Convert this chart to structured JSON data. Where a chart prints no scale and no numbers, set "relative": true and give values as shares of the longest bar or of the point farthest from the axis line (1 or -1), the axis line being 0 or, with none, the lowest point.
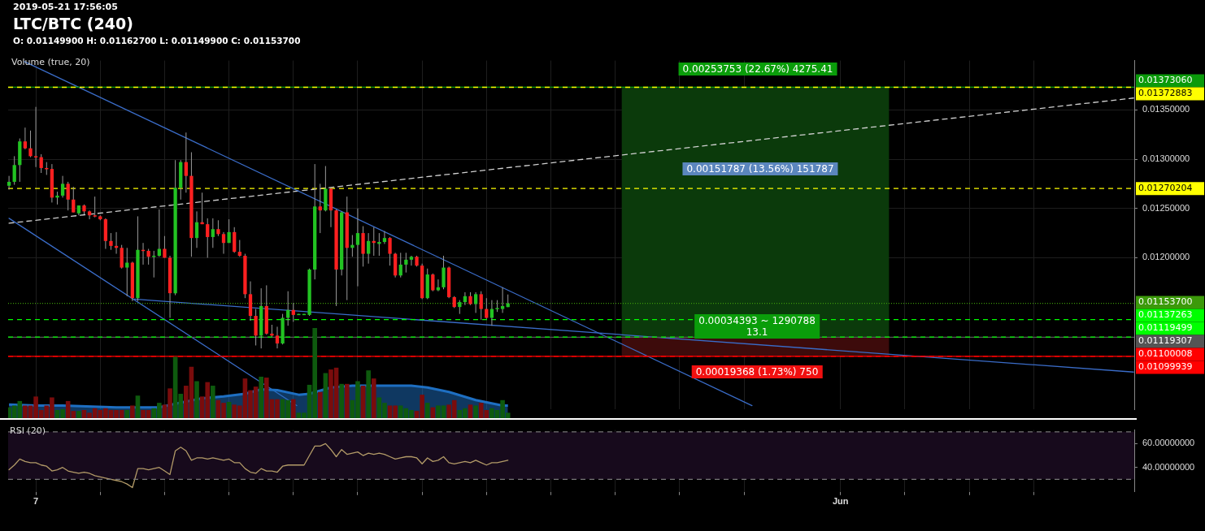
{
  "chart_data": [
    {
      "type": "candlestick",
      "title": "LTC/BTC (240)",
      "subtitle": "O: 0.01149900 H: 0.01162700 L: 0.01149900 C: 0.01153700",
      "annotations": [
        "2019-05-21 17:56:05",
        "0.00253753 (22.67%) 4275.41",
        "0.00151787 (13.56%) 151787",
        "0.00034393 ~ 1290788\n13.1",
        "0.00019368 (1.73%) 750"
      ],
      "x": [
        "2019-05-06T04:00",
        "2019-05-06T08:00",
        "2019-05-06T12:00",
        "2019-05-06T16:00",
        "2019-05-06T20:00",
        "2019-05-07T00:00",
        "2019-05-07T04:00",
        "2019-05-07T08:00",
        "2019-05-07T12:00",
        "2019-05-07T16:00",
        "2019-05-07T20:00",
        "2019-05-08T00:00",
        "2019-05-08T04:00",
        "2019-05-08T08:00",
        "2019-05-08T12:00",
        "2019-05-08T16:00",
        "2019-05-08T20:00",
        "2019-05-09T00:00",
        "2019-05-09T04:00",
        "2019-05-09T08:00",
        "2019-05-09T12:00",
        "2019-05-09T16:00",
        "2019-05-09T20:00",
        "2019-05-10T00:00",
        "2019-05-10T04:00",
        "2019-05-10T08:00",
        "2019-05-10T12:00",
        "2019-05-10T16:00",
        "2019-05-10T20:00",
        "2019-05-11T00:00",
        "2019-05-11T04:00",
        "2019-05-11T08:00",
        "2019-05-11T12:00",
        "2019-05-11T16:00",
        "2019-05-11T20:00",
        "2019-05-12T00:00",
        "2019-05-12T04:00",
        "2019-05-12T08:00",
        "2019-05-12T12:00",
        "2019-05-12T16:00",
        "2019-05-12T20:00",
        "2019-05-13T00:00",
        "2019-05-13T04:00",
        "2019-05-13T08:00",
        "2019-05-13T12:00",
        "2019-05-13T16:00",
        "2019-05-13T20:00",
        "2019-05-14T00:00",
        "2019-05-14T04:00",
        "2019-05-14T08:00",
        "2019-05-14T12:00",
        "2019-05-14T16:00",
        "2019-05-14T20:00",
        "2019-05-15T00:00",
        "2019-05-15T04:00",
        "2019-05-15T08:00",
        "2019-05-15T12:00",
        "2019-05-15T16:00",
        "2019-05-15T20:00",
        "2019-05-16T00:00",
        "2019-05-16T04:00",
        "2019-05-16T08:00",
        "2019-05-16T12:00",
        "2019-05-16T16:00",
        "2019-05-16T20:00",
        "2019-05-17T00:00",
        "2019-05-17T04:00",
        "2019-05-17T08:00",
        "2019-05-17T12:00",
        "2019-05-17T16:00",
        "2019-05-17T20:00",
        "2019-05-18T00:00",
        "2019-05-18T04:00",
        "2019-05-18T08:00",
        "2019-05-18T12:00",
        "2019-05-18T16:00",
        "2019-05-18T20:00",
        "2019-05-19T00:00",
        "2019-05-19T04:00",
        "2019-05-19T08:00",
        "2019-05-19T12:00",
        "2019-05-19T16:00",
        "2019-05-19T20:00",
        "2019-05-20T00:00",
        "2019-05-20T04:00",
        "2019-05-20T08:00",
        "2019-05-20T12:00",
        "2019-05-20T16:00",
        "2019-05-20T20:00",
        "2019-05-21T00:00",
        "2019-05-21T04:00",
        "2019-05-21T08:00",
        "2019-05-21T12:00",
        "2019-05-21T16:00"
      ],
      "ohlc": [
        [
          0.01273,
          0.01283,
          0.01269,
          0.01277
        ],
        [
          0.01277,
          0.01303,
          0.01274,
          0.01294
        ],
        [
          0.01294,
          0.01321,
          0.01277,
          0.01318
        ],
        [
          0.01318,
          0.01332,
          0.0131,
          0.01311
        ],
        [
          0.01311,
          0.01329,
          0.01302,
          0.01303
        ],
        [
          0.01303,
          0.01353,
          0.01292,
          0.01302
        ],
        [
          0.01302,
          0.01305,
          0.01286,
          0.01291
        ],
        [
          0.01291,
          0.01297,
          0.01284,
          0.0129
        ],
        [
          0.0129,
          0.01295,
          0.01256,
          0.01261
        ],
        [
          0.01261,
          0.01267,
          0.01254,
          0.01263
        ],
        [
          0.01263,
          0.01283,
          0.01261,
          0.01275
        ],
        [
          0.01275,
          0.01277,
          0.01248,
          0.01259
        ],
        [
          0.01259,
          0.01272,
          0.01246,
          0.01246
        ],
        [
          0.01245,
          0.01253,
          0.01243,
          0.01253
        ],
        [
          0.01253,
          0.01254,
          0.01244,
          0.01247
        ],
        [
          0.01247,
          0.01248,
          0.01239,
          0.01243
        ],
        [
          0.01243,
          0.01262,
          0.01241,
          0.01242
        ],
        [
          0.01242,
          0.01243,
          0.01238,
          0.01239
        ],
        [
          0.01239,
          0.0124,
          0.01209,
          0.01217
        ],
        [
          0.01217,
          0.01225,
          0.01208,
          0.01212
        ],
        [
          0.01212,
          0.01226,
          0.01204,
          0.0121
        ],
        [
          0.0121,
          0.01213,
          0.01189,
          0.0119
        ],
        [
          0.0119,
          0.0121,
          0.01161,
          0.01195
        ],
        [
          0.01195,
          0.01196,
          0.01156,
          0.01159
        ],
        [
          0.01159,
          0.01242,
          0.01156,
          0.01208
        ],
        [
          0.01208,
          0.01215,
          0.01193,
          0.01207
        ],
        [
          0.01207,
          0.01209,
          0.01193,
          0.01201
        ],
        [
          0.01201,
          0.01207,
          0.0118,
          0.01202
        ],
        [
          0.01202,
          0.01249,
          0.01201,
          0.01209
        ],
        [
          0.01209,
          0.01222,
          0.012,
          0.012
        ],
        [
          0.012,
          0.01202,
          0.01139,
          0.01164
        ],
        [
          0.01164,
          0.01299,
          0.01162,
          0.01271
        ],
        [
          0.01271,
          0.01299,
          0.01259,
          0.01297
        ],
        [
          0.01297,
          0.01327,
          0.01266,
          0.01283
        ],
        [
          0.01283,
          0.01307,
          0.01201,
          0.0122
        ],
        [
          0.0122,
          0.01247,
          0.0121,
          0.01236
        ],
        [
          0.01236,
          0.01266,
          0.01234,
          0.01234
        ],
        [
          0.01234,
          0.0124,
          0.012,
          0.01221
        ],
        [
          0.01221,
          0.0124,
          0.0121,
          0.01229
        ],
        [
          0.01229,
          0.01238,
          0.01222,
          0.01224
        ],
        [
          0.01224,
          0.01226,
          0.01204,
          0.01215
        ],
        [
          0.01215,
          0.01239,
          0.01215,
          0.01226
        ],
        [
          0.01226,
          0.01231,
          0.01205,
          0.01206
        ],
        [
          0.01206,
          0.01218,
          0.01201,
          0.01202
        ],
        [
          0.01202,
          0.01204,
          0.01159,
          0.01163
        ],
        [
          0.01163,
          0.01176,
          0.01136,
          0.01141
        ],
        [
          0.01141,
          0.01148,
          0.01111,
          0.01121
        ],
        [
          0.01121,
          0.01169,
          0.01108,
          0.01151
        ],
        [
          0.01151,
          0.01172,
          0.01122,
          0.01123
        ],
        [
          0.01123,
          0.01132,
          0.0112,
          0.01121
        ],
        [
          0.01121,
          0.0113,
          0.01108,
          0.01113
        ],
        [
          0.01113,
          0.01143,
          0.01112,
          0.01139
        ],
        [
          0.01139,
          0.01166,
          0.01131,
          0.01147
        ],
        [
          0.01147,
          0.01154,
          0.01135,
          0.01142
        ],
        [
          0.01142,
          0.01143,
          0.01142,
          0.01143
        ],
        [
          0.01142,
          0.01143,
          0.01142,
          0.01143
        ],
        [
          0.01142,
          0.01189,
          0.01141,
          0.01188
        ],
        [
          0.01188,
          0.01295,
          0.01178,
          0.01252
        ],
        [
          0.01252,
          0.01275,
          0.01225,
          0.01248
        ],
        [
          0.01248,
          0.01293,
          0.01247,
          0.0127
        ],
        [
          0.0127,
          0.01271,
          0.01231,
          0.01248
        ],
        [
          0.01248,
          0.01249,
          0.01151,
          0.01188
        ],
        [
          0.01188,
          0.01247,
          0.01182,
          0.01246
        ],
        [
          0.01246,
          0.01262,
          0.01157,
          0.0121
        ],
        [
          0.0121,
          0.01223,
          0.01201,
          0.01213
        ],
        [
          0.01213,
          0.0125,
          0.01171,
          0.01225
        ],
        [
          0.01225,
          0.01232,
          0.01191,
          0.01204
        ],
        [
          0.01204,
          0.01225,
          0.01194,
          0.01217
        ],
        [
          0.01217,
          0.01231,
          0.01202,
          0.01215
        ],
        [
          0.01214,
          0.01225,
          0.01202,
          0.01216
        ],
        [
          0.01216,
          0.01227,
          0.01214,
          0.0122
        ],
        [
          0.0122,
          0.01221,
          0.01192,
          0.01204
        ],
        [
          0.01204,
          0.01205,
          0.0118,
          0.01182
        ],
        [
          0.01182,
          0.01205,
          0.0118,
          0.01193
        ],
        [
          0.01193,
          0.01205,
          0.01185,
          0.01198
        ],
        [
          0.01198,
          0.01202,
          0.01192,
          0.01201
        ],
        [
          0.01201,
          0.01202,
          0.01191,
          0.01192
        ],
        [
          0.01192,
          0.01194,
          0.01158,
          0.01159
        ],
        [
          0.01159,
          0.01189,
          0.01158,
          0.01183
        ],
        [
          0.01183,
          0.01184,
          0.01166,
          0.01167
        ],
        [
          0.01167,
          0.01178,
          0.01166,
          0.0117
        ],
        [
          0.0117,
          0.01202,
          0.01168,
          0.0119
        ],
        [
          0.0119,
          0.01191,
          0.01159,
          0.0116
        ],
        [
          0.0116,
          0.01161,
          0.01149,
          0.0115
        ],
        [
          0.0115,
          0.01157,
          0.01143,
          0.01155
        ],
        [
          0.01155,
          0.01165,
          0.01152,
          0.01161
        ],
        [
          0.01161,
          0.01165,
          0.01152,
          0.01153
        ],
        [
          0.01153,
          0.01165,
          0.01144,
          0.01163
        ],
        [
          0.01163,
          0.01166,
          0.01137,
          0.01148
        ],
        [
          0.01148,
          0.01159,
          0.01138,
          0.01139
        ],
        [
          0.01139,
          0.01157,
          0.01131,
          0.01148
        ],
        [
          0.01148,
          0.01157,
          0.01145,
          0.01149
        ],
        [
          0.01148,
          0.0117,
          0.01144,
          0.01151
        ],
        [
          0.011499,
          0.011627,
          0.011499,
          0.011537
        ]
      ],
      "colors": [
        "#22c322",
        "#22c322",
        "#22c322",
        "#ff2020",
        "#ff2020",
        "#ff2020",
        "#ff2020",
        "#ff2020",
        "#ff2020",
        "#22c322",
        "#22c322",
        "#ff2020",
        "#ff2020",
        "#22c322",
        "#ff2020",
        "#ff2020",
        "#ff2020",
        "#ff2020",
        "#ff2020",
        "#ff2020",
        "#ff2020",
        "#ff2020",
        "#22c322",
        "#ff2020",
        "#22c322",
        "#ff2020",
        "#ff2020",
        "#22c322",
        "#22c322",
        "#ff2020",
        "#ff2020",
        "#22c322",
        "#22c322",
        "#ff2020",
        "#ff2020",
        "#22c322",
        "#ff2020",
        "#ff2020",
        "#22c322",
        "#ff2020",
        "#ff2020",
        "#22c322",
        "#ff2020",
        "#ff2020",
        "#ff2020",
        "#ff2020",
        "#ff2020",
        "#22c322",
        "#ff2020",
        "#ff2020",
        "#ff2020",
        "#22c322",
        "#22c322",
        "#ff2020",
        "#22c322",
        "#22c322",
        "#22c322",
        "#22c322",
        "#ff2020",
        "#22c322",
        "#ff2020",
        "#ff2020",
        "#22c322",
        "#ff2020",
        "#22c322",
        "#22c322",
        "#ff2020",
        "#22c322",
        "#ff2020",
        "#22c322",
        "#22c322",
        "#ff2020",
        "#ff2020",
        "#22c322",
        "#22c322",
        "#22c322",
        "#ff2020",
        "#ff2020",
        "#22c322",
        "#ff2020",
        "#22c322",
        "#22c322",
        "#ff2020",
        "#ff2020",
        "#22c322",
        "#22c322",
        "#ff2020",
        "#22c322",
        "#ff2020",
        "#ff2020",
        "#22c322",
        "#22c322",
        "#22c322",
        "#22c322"
      ],
      "series": [
        {
          "type": "bar",
          "color": "#0b3a0b",
          "x": [
            "2019-05-29T08:30"
          ],
          "base": [
            0.01119
          ],
          "values": [
            0.00254
          ]
        },
        {
          "type": "bar",
          "color": "#3d0b0b",
          "x": [
            "2019-05-29T08:30"
          ],
          "base": [
            0.011
          ],
          "values": [
            0.00019
          ]
        },
        {
          "type": "line",
          "color": "#3a6cc8",
          "x": [
            "2019-05-06T15:30",
            "2019-05-29T06:00"
          ],
          "values": [
            0.01399,
            0.0105
          ]
        },
        {
          "type": "line",
          "color": "#3a6cc8",
          "x": [
            "2019-05-06T04:00",
            "2019-05-15T02:30"
          ],
          "values": [
            0.0124,
            0.0105
          ]
        },
        {
          "type": "line",
          "color": "#3a6cc8",
          "x": [
            "2019-05-10T01:20",
            "2019-06-10T02:30"
          ],
          "values": [
            0.01158,
            0.01084
          ]
        },
        {
          "type": "line",
          "color": "#d0d0d0",
          "line_style": "dashed",
          "x": [
            "2019-05-06T04:00",
            "2019-06-10T02:30"
          ],
          "values": [
            0.01235,
            0.01362
          ]
        }
      ],
      "xlim": [
        "2019-05-06T03:20",
        "2019-06-10T03:00"
      ],
      "xticks": [
        {
          "value": "2019-05-07",
          "label": null
        },
        {
          "value": "2019-05-09",
          "label": null
        },
        {
          "value": "2019-05-11",
          "label": null
        },
        {
          "value": "2019-05-13",
          "label": null
        },
        {
          "value": "2019-05-15",
          "label": null
        },
        {
          "value": "2019-05-17",
          "label": null
        },
        {
          "value": "2019-05-19",
          "label": null
        },
        {
          "value": "2019-05-21",
          "label": null
        },
        {
          "value": "2019-05-23",
          "label": null
        },
        {
          "value": "2019-05-25",
          "label": null
        },
        {
          "value": "2019-05-27",
          "label": null
        },
        {
          "value": "2019-05-29",
          "label": null
        },
        {
          "value": "2019-06-01",
          "label": null
        },
        {
          "value": "2019-06-03",
          "label": null
        },
        {
          "value": "2019-06-05",
          "label": null
        },
        {
          "value": "2019-06-07",
          "label": null
        }
      ],
      "ylim": [
        0.01046,
        0.014
      ],
      "yticks": [
        {
          "value": 0.012,
          "label": "0.01200000"
        },
        {
          "value": 0.0125,
          "label": "0.01250000"
        },
        {
          "value": 0.013,
          "label": "0.01300000"
        },
        {
          "value": 0.0135,
          "label": "0.01350000"
        }
      ],
      "ref_lines": [
        {
          "axis": "y",
          "value": 0.01372883,
          "label": "0.01372883",
          "color": "#ffff00",
          "line_style": "dashed"
        },
        {
          "axis": "y",
          "value": 0.0137306,
          "label": "0.01373060",
          "color": "#0a9a0a",
          "line_style": "solid"
        },
        {
          "axis": "y",
          "value": 0.01270204,
          "label": "0.01270204",
          "color": "#ffff00",
          "line_style": "dashed"
        },
        {
          "axis": "y",
          "value": 0.011537,
          "label": "0.01153700",
          "color": "#3c9a0a",
          "line_style": "dotted"
        },
        {
          "axis": "y",
          "value": 0.01137263,
          "label": "0.01137263",
          "color": "#00ff00",
          "line_style": "dashed"
        },
        {
          "axis": "y",
          "value": 0.01119499,
          "label": "0.01119499",
          "color": "#00ff00",
          "line_style": "dashed"
        },
        {
          "axis": "y",
          "value": 0.01119307,
          "label": "0.01119307",
          "color": "#555555",
          "line_style": "solid"
        },
        {
          "axis": "y",
          "value": 0.01100008,
          "label": "0.01100008",
          "color": "#ff0000",
          "line_style": "dashed"
        },
        {
          "axis": "y",
          "value": 0.01099939,
          "label": "0.01099939",
          "color": "#ff0000",
          "line_style": "solid"
        }
      ],
      "grid": true,
      "tick_labels": "y"
    },
    {
      "type": "bar",
      "title": "Volume (true, 20)",
      "relative": true,
      "x": [
        "2019-05-06T04:00",
        "2019-05-06T08:00",
        "2019-05-06T12:00",
        "2019-05-06T16:00",
        "2019-05-06T20:00",
        "2019-05-07T00:00",
        "2019-05-07T04:00",
        "2019-05-07T08:00",
        "2019-05-07T12:00",
        "2019-05-07T16:00",
        "2019-05-07T20:00",
        "2019-05-08T00:00",
        "2019-05-08T04:00",
        "2019-05-08T08:00",
        "2019-05-08T12:00",
        "2019-05-08T16:00",
        "2019-05-08T20:00",
        "2019-05-09T00:00",
        "2019-05-09T04:00",
        "2019-05-09T08:00",
        "2019-05-09T12:00",
        "2019-05-09T16:00",
        "2019-05-09T20:00",
        "2019-05-10T00:00",
        "2019-05-10T04:00",
        "2019-05-10T08:00",
        "2019-05-10T12:00",
        "2019-05-10T16:00",
        "2019-05-10T20:00",
        "2019-05-11T00:00",
        "2019-05-11T04:00",
        "2019-05-11T08:00",
        "2019-05-11T12:00",
        "2019-05-11T16:00",
        "2019-05-11T20:00",
        "2019-05-12T00:00",
        "2019-05-12T04:00",
        "2019-05-12T08:00",
        "2019-05-12T12:00",
        "2019-05-12T16:00",
        "2019-05-12T20:00",
        "2019-05-13T00:00",
        "2019-05-13T04:00",
        "2019-05-13T08:00",
        "2019-05-13T12:00",
        "2019-05-13T16:00",
        "2019-05-13T20:00",
        "2019-05-14T00:00",
        "2019-05-14T04:00",
        "2019-05-14T08:00",
        "2019-05-14T12:00",
        "2019-05-14T16:00",
        "2019-05-14T20:00",
        "2019-05-15T00:00",
        "2019-05-15T04:00",
        "2019-05-15T08:00",
        "2019-05-15T12:00",
        "2019-05-15T16:00",
        "2019-05-15T20:00",
        "2019-05-16T00:00",
        "2019-05-16T04:00",
        "2019-05-16T08:00",
        "2019-05-16T12:00",
        "2019-05-16T16:00",
        "2019-05-16T20:00",
        "2019-05-17T00:00",
        "2019-05-17T04:00",
        "2019-05-17T08:00",
        "2019-05-17T12:00",
        "2019-05-17T16:00",
        "2019-05-17T20:00",
        "2019-05-18T00:00",
        "2019-05-18T04:00",
        "2019-05-18T08:00",
        "2019-05-18T12:00",
        "2019-05-18T16:00",
        "2019-05-18T20:00",
        "2019-05-19T00:00",
        "2019-05-19T04:00",
        "2019-05-19T08:00",
        "2019-05-19T12:00",
        "2019-05-19T16:00",
        "2019-05-19T20:00",
        "2019-05-20T00:00",
        "2019-05-20T04:00",
        "2019-05-20T08:00",
        "2019-05-20T12:00",
        "2019-05-20T16:00",
        "2019-05-20T20:00",
        "2019-05-21T00:00",
        "2019-05-21T04:00",
        "2019-05-21T08:00",
        "2019-05-21T12:00",
        "2019-05-21T16:00"
      ],
      "series": [
        {
          "values": [
            0.12,
            0.14,
            0.19,
            0.14,
            0.14,
            0.24,
            0.09,
            0.14,
            0.23,
            0.09,
            0.1,
            0.19,
            0.08,
            0.08,
            0.09,
            0.06,
            0.11,
            0.09,
            0.11,
            0.09,
            0.09,
            0.09,
            0.09,
            0.14,
            0.25,
            0.09,
            0.09,
            0.11,
            0.17,
            0.15,
            0.33,
            0.68,
            0.27,
            0.36,
            0.57,
            0.41,
            0.24,
            0.4,
            0.36,
            0.2,
            0.17,
            0.18,
            0.15,
            0.14,
            0.44,
            0.31,
            0.35,
            0.46,
            0.45,
            0.21,
            0.21,
            0.21,
            0.2,
            0.21,
            0.06,
            0.06,
            0.37,
            1,
            0.29,
            0.5,
            0.54,
            0.56,
            0.38,
            0.38,
            0.2,
            0.41,
            0.36,
            0.53,
            0.44,
            0.23,
            0.17,
            0.14,
            0.14,
            0.14,
            0.11,
            0.09,
            0.08,
            0.26,
            0.17,
            0.12,
            0.14,
            0.14,
            0.15,
            0.2,
            0.09,
            0.11,
            0.15,
            0.14,
            0.17,
            0.09,
            0.11,
            0.09,
            0.2,
            0.06
          ],
          "colors": [
            "#0e5a0e",
            "#0e5a0e",
            "#0e5a0e",
            "#7a0c0c",
            "#7a0c0c",
            "#7a0c0c",
            "#7a0c0c",
            "#7a0c0c",
            "#7a0c0c",
            "#0e5a0e",
            "#0e5a0e",
            "#7a0c0c",
            "#7a0c0c",
            "#0e5a0e",
            "#7a0c0c",
            "#7a0c0c",
            "#7a0c0c",
            "#7a0c0c",
            "#7a0c0c",
            "#7a0c0c",
            "#7a0c0c",
            "#7a0c0c",
            "#0e5a0e",
            "#7a0c0c",
            "#0e5a0e",
            "#7a0c0c",
            "#7a0c0c",
            "#0e5a0e",
            "#0e5a0e",
            "#7a0c0c",
            "#7a0c0c",
            "#0e5a0e",
            "#0e5a0e",
            "#7a0c0c",
            "#7a0c0c",
            "#0e5a0e",
            "#7a0c0c",
            "#7a0c0c",
            "#0e5a0e",
            "#7a0c0c",
            "#7a0c0c",
            "#0e5a0e",
            "#7a0c0c",
            "#7a0c0c",
            "#7a0c0c",
            "#7a0c0c",
            "#7a0c0c",
            "#0e5a0e",
            "#7a0c0c",
            "#7a0c0c",
            "#7a0c0c",
            "#0e5a0e",
            "#0e5a0e",
            "#7a0c0c",
            "#0e5a0e",
            "#0e5a0e",
            "#0e5a0e",
            "#0e5a0e",
            "#7a0c0c",
            "#0e5a0e",
            "#7a0c0c",
            "#7a0c0c",
            "#0e5a0e",
            "#7a0c0c",
            "#0e5a0e",
            "#0e5a0e",
            "#7a0c0c",
            "#0e5a0e",
            "#7a0c0c",
            "#0e5a0e",
            "#0e5a0e",
            "#7a0c0c",
            "#7a0c0c",
            "#0e5a0e",
            "#0e5a0e",
            "#0e5a0e",
            "#7a0c0c",
            "#7a0c0c",
            "#0e5a0e",
            "#7a0c0c",
            "#0e5a0e",
            "#0e5a0e",
            "#7a0c0c",
            "#7a0c0c",
            "#0e5a0e",
            "#0e5a0e",
            "#7a0c0c",
            "#0e5a0e",
            "#7a0c0c",
            "#7a0c0c",
            "#0e5a0e",
            "#0e5a0e",
            "#0e5a0e",
            "#0e5a0e"
          ]
        },
        {
          "type": "area",
          "color": "#1e6fc2",
          "x": [
            "2019-05-06T04:00",
            "2019-05-07T00:00",
            "2019-05-07T20:00",
            "2019-05-09T12:00",
            "2019-05-10T20:00",
            "2019-05-11T08:00",
            "2019-05-12T04:00",
            "2019-05-12T20:00",
            "2019-05-13T12:00",
            "2019-05-14T00:00",
            "2019-05-14T12:00",
            "2019-05-15T04:00",
            "2019-05-15T12:00",
            "2019-05-16T04:00",
            "2019-05-16T20:00",
            "2019-05-18T16:00",
            "2019-05-19T04:00",
            "2019-05-19T20:00",
            "2019-05-20T16:00",
            "2019-05-21T12:00",
            "2019-05-21T16:00"
          ],
          "values": [
            0.15,
            0.14,
            0.14,
            0.12,
            0.12,
            0.16,
            0.22,
            0.24,
            0.27,
            0.32,
            0.31,
            0.26,
            0.27,
            0.34,
            0.36,
            0.36,
            0.34,
            0.29,
            0.2,
            0.14,
            0.14
          ]
        }
      ],
      "xlim": [
        "2019-05-06T03:20",
        "2019-06-10T03:00"
      ],
      "tick_labels": false
    },
    {
      "type": "line",
      "title": "RSI (20)",
      "x": [
        "2019-05-06T04:00",
        "2019-05-06T08:00",
        "2019-05-06T12:00",
        "2019-05-06T16:00",
        "2019-05-06T20:00",
        "2019-05-07T00:00",
        "2019-05-07T04:00",
        "2019-05-07T08:00",
        "2019-05-07T12:00",
        "2019-05-07T16:00",
        "2019-05-07T20:00",
        "2019-05-08T00:00",
        "2019-05-08T04:00",
        "2019-05-08T08:00",
        "2019-05-08T12:00",
        "2019-05-08T16:00",
        "2019-05-08T20:00",
        "2019-05-09T00:00",
        "2019-05-09T04:00",
        "2019-05-09T08:00",
        "2019-05-09T12:00",
        "2019-05-09T16:00",
        "2019-05-09T20:00",
        "2019-05-10T00:00",
        "2019-05-10T04:00",
        "2019-05-10T08:00",
        "2019-05-10T12:00",
        "2019-05-10T16:00",
        "2019-05-10T20:00",
        "2019-05-11T00:00",
        "2019-05-11T04:00",
        "2019-05-11T08:00",
        "2019-05-11T12:00",
        "2019-05-11T16:00",
        "2019-05-11T20:00",
        "2019-05-12T00:00",
        "2019-05-12T04:00",
        "2019-05-12T08:00",
        "2019-05-12T12:00",
        "2019-05-12T16:00",
        "2019-05-12T20:00",
        "2019-05-13T00:00",
        "2019-05-13T04:00",
        "2019-05-13T08:00",
        "2019-05-13T12:00",
        "2019-05-13T16:00",
        "2019-05-13T20:00",
        "2019-05-14T00:00",
        "2019-05-14T04:00",
        "2019-05-14T08:00",
        "2019-05-14T12:00",
        "2019-05-14T16:00",
        "2019-05-14T20:00",
        "2019-05-15T00:00",
        "2019-05-15T04:00",
        "2019-05-15T08:00",
        "2019-05-15T12:00",
        "2019-05-15T16:00",
        "2019-05-15T20:00",
        "2019-05-16T00:00",
        "2019-05-16T04:00",
        "2019-05-16T08:00",
        "2019-05-16T12:00",
        "2019-05-16T16:00",
        "2019-05-16T20:00",
        "2019-05-17T00:00",
        "2019-05-17T04:00",
        "2019-05-17T08:00",
        "2019-05-17T12:00",
        "2019-05-17T16:00",
        "2019-05-17T20:00",
        "2019-05-18T00:00",
        "2019-05-18T04:00",
        "2019-05-18T08:00",
        "2019-05-18T12:00",
        "2019-05-18T16:00",
        "2019-05-18T20:00",
        "2019-05-19T00:00",
        "2019-05-19T04:00",
        "2019-05-19T08:00",
        "2019-05-19T12:00",
        "2019-05-19T16:00",
        "2019-05-19T20:00",
        "2019-05-20T00:00",
        "2019-05-20T04:00",
        "2019-05-20T08:00",
        "2019-05-20T12:00",
        "2019-05-20T16:00",
        "2019-05-20T20:00",
        "2019-05-21T00:00",
        "2019-05-21T04:00",
        "2019-05-21T08:00",
        "2019-05-21T12:00",
        "2019-05-21T16:00"
      ],
      "series": [
        {
          "color": "#b39b68",
          "values": [
            38,
            42,
            47,
            45,
            44,
            44,
            42,
            41,
            37,
            38,
            40,
            37,
            36,
            35,
            36,
            35,
            33,
            32,
            31,
            30,
            29,
            28,
            26,
            23,
            39,
            39,
            38,
            39,
            40,
            37,
            34,
            54,
            57,
            54,
            46,
            48,
            48,
            47,
            48,
            47,
            46,
            47,
            44,
            44,
            39,
            36,
            35,
            39,
            37,
            37,
            36,
            41,
            42,
            42,
            42,
            42,
            50,
            58,
            58,
            60,
            55,
            49,
            55,
            51,
            52,
            53,
            50,
            52,
            51,
            52,
            51,
            49,
            47,
            48,
            49,
            49,
            48,
            43,
            48,
            45,
            46,
            49,
            44,
            43,
            44,
            45,
            44,
            46,
            44,
            42,
            44,
            44,
            45,
            46
          ]
        }
      ],
      "xlim": [
        "2019-05-06T03:20",
        "2019-06-10T03:00"
      ],
      "xticks": [
        {
          "value": "2019-05-07",
          "label": "7"
        },
        {
          "value": "2019-05-09",
          "label": null
        },
        {
          "value": "2019-05-11",
          "label": null
        },
        {
          "value": "2019-05-13",
          "label": null
        },
        {
          "value": "2019-05-15",
          "label": null
        },
        {
          "value": "2019-05-17",
          "label": null
        },
        {
          "value": "2019-05-19",
          "label": null
        },
        {
          "value": "2019-05-21",
          "label": null
        },
        {
          "value": "2019-05-23",
          "label": null
        },
        {
          "value": "2019-05-25",
          "label": null
        },
        {
          "value": "2019-05-27",
          "label": null
        },
        {
          "value": "2019-05-29",
          "label": null
        },
        {
          "value": "2019-06-01",
          "label": "Jun"
        },
        {
          "value": "2019-06-03",
          "label": null
        },
        {
          "value": "2019-06-05",
          "label": null
        },
        {
          "value": "2019-06-07",
          "label": null
        }
      ],
      "ylim": [
        19.4,
        71.5
      ],
      "yticks": [
        {
          "value": 40,
          "label": "40.00000000"
        },
        {
          "value": 60,
          "label": "60.00000000"
        }
      ],
      "ref_lines": [
        {
          "axis": "y",
          "value": 70,
          "color": "#777777",
          "line_style": "dashed"
        },
        {
          "axis": "y",
          "value": 30,
          "color": "#777777",
          "line_style": "dashed"
        }
      ],
      "bands": [
        {
          "axis": "y",
          "from": 30,
          "to": 70,
          "color": "#170a1c"
        }
      ],
      "grid": true,
      "marker": "none"
    }
  ]
}
